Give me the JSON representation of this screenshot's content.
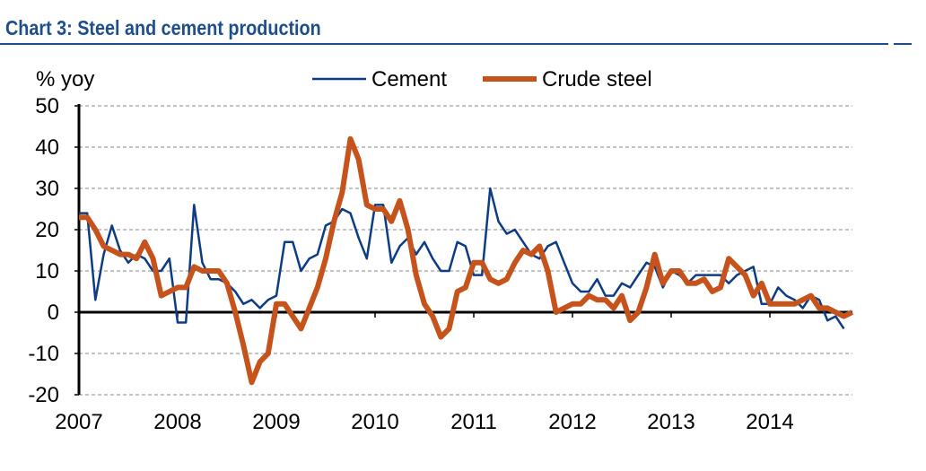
{
  "title": "Chart 3: Steel and cement production",
  "chart_data": {
    "type": "line",
    "title": "Chart 3: Steel and cement production",
    "ylabel": "% yoy",
    "xlabel": "",
    "ylim": [
      -20,
      50
    ],
    "yticks": [
      50,
      40,
      30,
      20,
      10,
      0,
      -10,
      -20
    ],
    "xticks": [
      "2007",
      "2008",
      "2009",
      "2010",
      "2011",
      "2012",
      "2013",
      "2014"
    ],
    "frequency": "monthly, starting Jan 2007",
    "grid": "horizontal dashed",
    "legend": "top-center",
    "series": [
      {
        "name": "Cement",
        "color": "#0d3c84",
        "values": [
          24,
          24,
          3,
          14,
          21,
          15,
          12,
          14,
          13,
          10,
          10,
          13,
          -2.5,
          -2.5,
          26,
          12,
          8,
          8,
          7,
          5,
          2,
          3,
          1,
          3,
          4,
          17,
          17,
          10,
          13,
          14,
          21,
          22,
          25,
          24,
          18,
          13,
          26,
          26,
          12,
          16,
          18,
          14,
          17,
          13,
          10,
          10,
          17,
          16,
          9,
          9,
          30,
          22,
          19,
          20,
          17,
          14,
          13,
          16,
          17,
          12,
          7,
          5,
          5,
          8,
          4,
          4,
          7,
          6,
          9,
          12,
          11,
          6,
          10,
          9,
          7,
          9,
          9,
          9,
          9,
          7,
          9,
          10,
          11,
          2,
          2,
          6,
          4,
          3,
          1,
          4,
          3,
          -2,
          -1,
          -4
        ]
      },
      {
        "name": "Crude steel",
        "color": "#c5531b",
        "values": [
          23,
          23,
          20,
          16,
          15,
          14,
          14,
          13,
          17,
          13,
          4,
          5,
          6,
          6,
          11,
          10,
          10,
          10,
          7,
          0,
          -8,
          -17,
          -12,
          -10,
          2,
          2,
          -1,
          -4,
          1,
          6,
          13,
          22,
          29,
          42,
          37,
          26,
          25,
          25,
          22,
          27,
          20,
          9,
          2,
          -1,
          -6,
          -4,
          5,
          6,
          12,
          12,
          8,
          7,
          8,
          12,
          15,
          14,
          16,
          10,
          0,
          1,
          2,
          2,
          4,
          3,
          3,
          1,
          4,
          -2,
          0,
          6,
          14,
          7,
          10,
          10,
          7,
          7,
          8,
          5,
          6,
          13,
          11,
          9,
          4,
          7,
          2,
          2,
          2,
          2,
          3,
          4,
          1,
          1,
          0,
          -1,
          0
        ]
      }
    ]
  }
}
